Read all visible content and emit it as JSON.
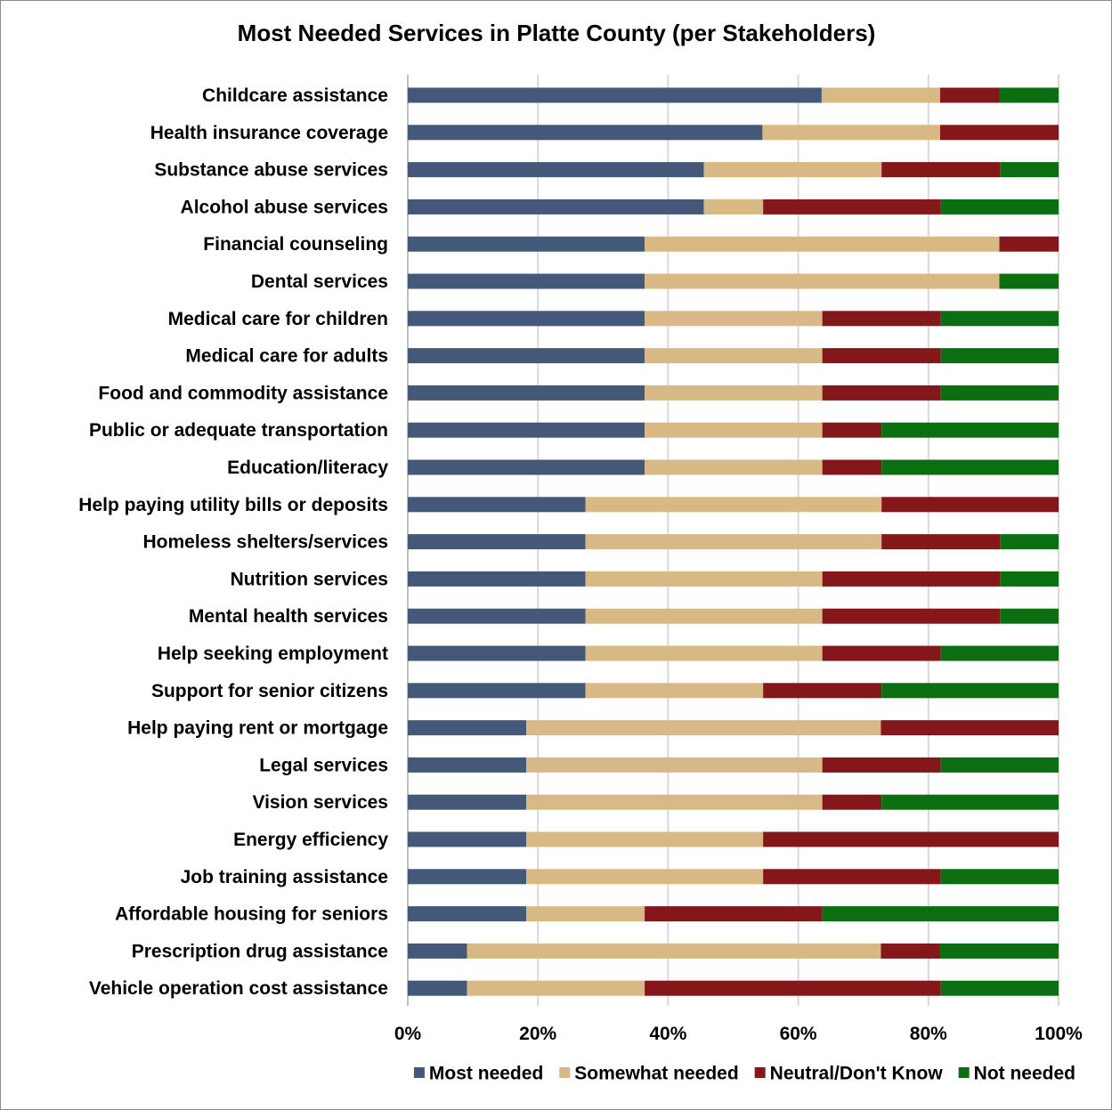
{
  "chart_data": {
    "type": "bar",
    "orientation": "horizontal",
    "stacked": "percent",
    "title": "Most Needed Services in Platte County (per Stakeholders)",
    "xlabel": "",
    "ylabel": "",
    "xlim": [
      0,
      100
    ],
    "x_ticks": [
      "0%",
      "20%",
      "40%",
      "60%",
      "80%",
      "100%"
    ],
    "grid": "vertical",
    "legend_position": "bottom",
    "categories": [
      "Childcare assistance",
      "Health insurance coverage",
      "Substance abuse services",
      "Alcohol abuse services",
      "Financial counseling",
      "Dental services",
      "Medical care for children",
      "Medical care for adults",
      "Food and commodity assistance",
      "Public or adequate transportation",
      "Education/literacy",
      "Help paying utility bills or deposits",
      "Homeless shelters/services",
      "Nutrition services",
      "Mental health services",
      "Help seeking employment",
      "Support for senior citizens",
      "Help paying rent or mortgage",
      "Legal services",
      "Vision services",
      "Energy efficiency",
      "Job training assistance",
      "Affordable housing for seniors",
      "Prescription drug assistance",
      "Vehicle operation cost assistance"
    ],
    "series": [
      {
        "name": "Most needed",
        "color": "#44587a",
        "values": [
          63.6,
          54.5,
          45.5,
          45.5,
          36.4,
          36.4,
          36.4,
          36.4,
          36.4,
          36.4,
          36.4,
          27.3,
          27.3,
          27.3,
          27.3,
          27.3,
          27.3,
          18.2,
          18.2,
          18.2,
          18.2,
          18.2,
          18.2,
          9.1,
          9.1
        ]
      },
      {
        "name": "Somewhat needed",
        "color": "#d8b985",
        "values": [
          18.2,
          27.3,
          27.3,
          9.1,
          54.5,
          54.5,
          27.3,
          27.3,
          27.3,
          27.3,
          27.3,
          45.5,
          45.5,
          36.4,
          36.4,
          36.4,
          27.3,
          54.5,
          45.5,
          45.5,
          36.4,
          36.4,
          18.2,
          63.6,
          27.3
        ]
      },
      {
        "name": "Neutral/Don't Know",
        "color": "#84171a",
        "values": [
          9.1,
          18.2,
          18.2,
          27.3,
          9.1,
          0,
          18.2,
          18.2,
          18.2,
          9.1,
          9.1,
          27.3,
          18.2,
          27.3,
          27.3,
          18.2,
          18.2,
          27.3,
          18.2,
          9.1,
          45.5,
          27.3,
          27.3,
          9.1,
          45.5
        ]
      },
      {
        "name": "Not needed",
        "color": "#0b6f12",
        "values": [
          9.1,
          0,
          9.1,
          18.2,
          0,
          9.1,
          18.2,
          18.2,
          18.2,
          27.3,
          27.3,
          0,
          9.1,
          9.1,
          9.1,
          18.2,
          27.3,
          0,
          18.2,
          27.3,
          0,
          18.2,
          36.4,
          18.2,
          18.2
        ]
      }
    ]
  }
}
